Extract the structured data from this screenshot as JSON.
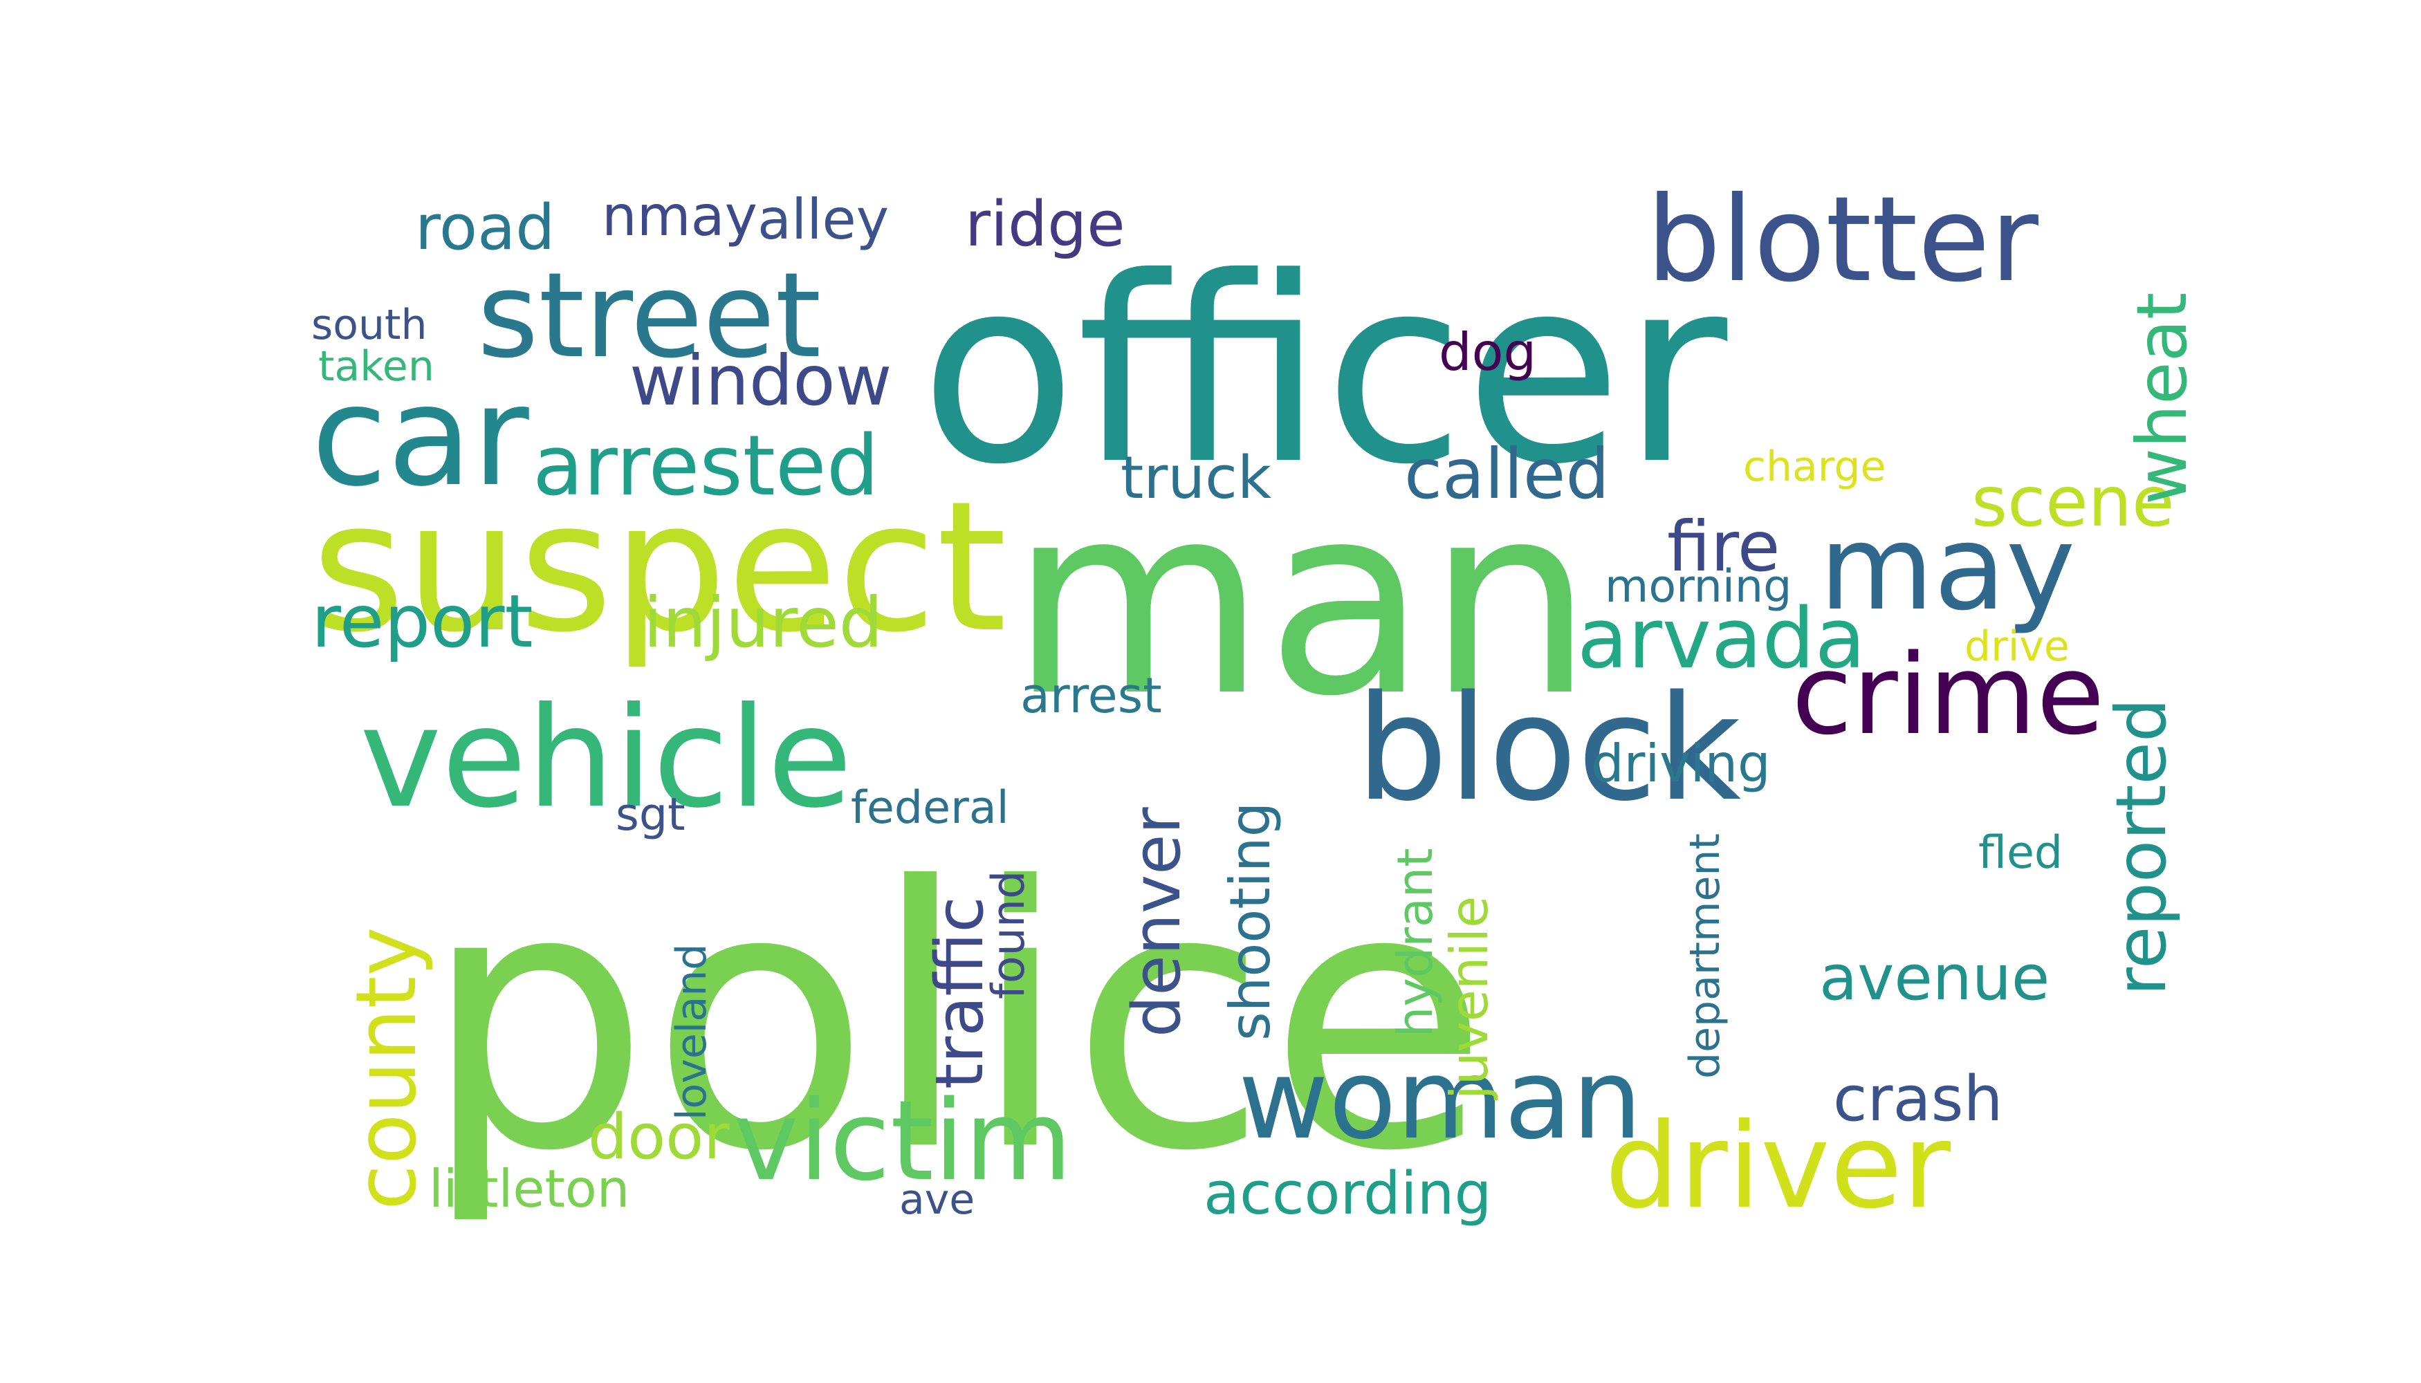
{
  "cloud": {
    "words": [
      {
        "text": "police",
        "color": "#7ad151"
      },
      {
        "text": "officer",
        "color": "#21918c"
      },
      {
        "text": "man",
        "color": "#5ec962"
      },
      {
        "text": "suspect",
        "color": "#bddf26"
      },
      {
        "text": "vehicle",
        "color": "#35b779"
      },
      {
        "text": "street",
        "color": "#2a788e"
      },
      {
        "text": "car",
        "color": "#23888e"
      },
      {
        "text": "blotter",
        "color": "#3b528b"
      },
      {
        "text": "block",
        "color": "#31688e"
      },
      {
        "text": "driver",
        "color": "#d0e11c"
      },
      {
        "text": "woman",
        "color": "#2c728e"
      },
      {
        "text": "victim",
        "color": "#5ec962"
      },
      {
        "text": "may",
        "color": "#31688e"
      },
      {
        "text": "crime",
        "color": "#440154"
      },
      {
        "text": "county",
        "color": "#d0e11c"
      },
      {
        "text": "arrested",
        "color": "#1f9e89"
      },
      {
        "text": "arvada",
        "color": "#22a884"
      },
      {
        "text": "window",
        "color": "#3e4989"
      },
      {
        "text": "report",
        "color": "#1f9e89"
      },
      {
        "text": "injured",
        "color": "#a0da39"
      },
      {
        "text": "fire",
        "color": "#3e4989"
      },
      {
        "text": "called",
        "color": "#31688e"
      },
      {
        "text": "scene",
        "color": "#bddf26"
      },
      {
        "text": "wheat",
        "color": "#35b779"
      },
      {
        "text": "reported",
        "color": "#21918c"
      },
      {
        "text": "road",
        "color": "#2a788e"
      },
      {
        "text": "nmay",
        "color": "#3e4989"
      },
      {
        "text": "ridge",
        "color": "#443983"
      },
      {
        "text": "alley",
        "color": "#3b528b"
      },
      {
        "text": "truck",
        "color": "#2c728e"
      },
      {
        "text": "dog",
        "color": "#440154"
      },
      {
        "text": "avenue",
        "color": "#21918c"
      },
      {
        "text": "crash",
        "color": "#3b528b"
      },
      {
        "text": "driving",
        "color": "#2a788e"
      },
      {
        "text": "accord­ing",
        "color": "#1f9e89"
      },
      {
        "text": "denver",
        "color": "#3b528b"
      },
      {
        "text": "traffic",
        "color": "#3e4989"
      },
      {
        "text": "shooting",
        "color": "#2c728e"
      },
      {
        "text": "door",
        "color": "#a0da39"
      },
      {
        "text": "littleton",
        "color": "#7ad151"
      },
      {
        "text": "morning",
        "color": "#2c728e"
      },
      {
        "text": "charge",
        "color": "#dde318"
      },
      {
        "text": "arrest",
        "color": "#2a788e"
      },
      {
        "text": "federal",
        "color": "#2c728e"
      },
      {
        "text": "sgt",
        "color": "#3b528b"
      },
      {
        "text": "juvenile",
        "color": "#a0da39"
      },
      {
        "text": "hydrant",
        "color": "#5ec962"
      },
      {
        "text": "department",
        "color": "#2c728e"
      },
      {
        "text": "loveland",
        "color": "#2c728e"
      },
      {
        "text": "found",
        "color": "#3e4989"
      },
      {
        "text": "south",
        "color": "#3b528b"
      },
      {
        "text": "taken",
        "color": "#35b779"
      },
      {
        "text": "fled",
        "color": "#21918c"
      },
      {
        "text": "drive",
        "color": "#dde318"
      },
      {
        "text": "ave",
        "color": "#3b528b"
      }
    ]
  }
}
